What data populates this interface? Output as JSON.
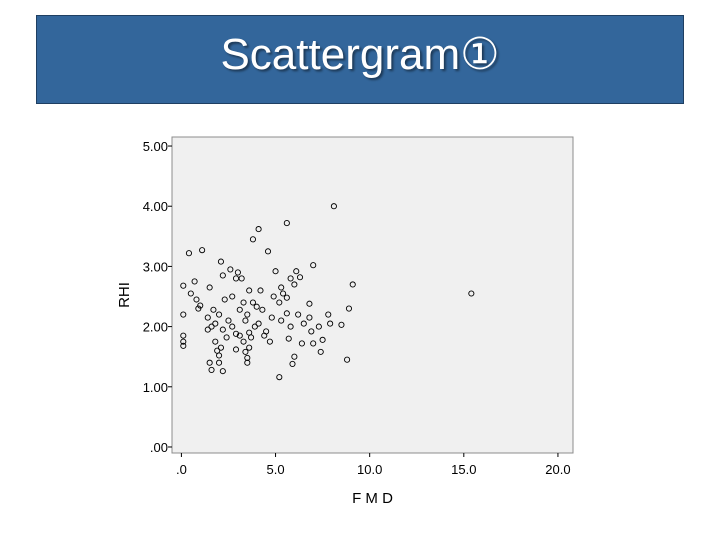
{
  "header": {
    "title": "Scattergram①"
  },
  "chart_data": {
    "type": "scatter",
    "xlabel": "F M D",
    "ylabel": "RHI",
    "xlim": [
      -0.5,
      20.8
    ],
    "ylim": [
      -0.1,
      5.15
    ],
    "xticks": [
      0,
      5,
      10,
      15,
      20
    ],
    "xtick_labels": [
      ".0",
      "5.0",
      "10.0",
      "15.0",
      "20.0"
    ],
    "yticks": [
      0,
      1,
      2,
      3,
      4,
      5
    ],
    "ytick_labels": [
      ".00",
      "1.00",
      "2.00",
      "3.00",
      "4.00",
      "5.00"
    ],
    "grid": false,
    "plot_background": "#f0f0f0",
    "marker_color": "#000000",
    "points": [
      [
        8.1,
        4.0
      ],
      [
        5.6,
        3.72
      ],
      [
        4.1,
        3.62
      ],
      [
        3.8,
        3.45
      ],
      [
        4.6,
        3.25
      ],
      [
        1.1,
        3.27
      ],
      [
        0.4,
        3.22
      ],
      [
        2.1,
        3.08
      ],
      [
        7.0,
        3.02
      ],
      [
        2.6,
        2.95
      ],
      [
        3.0,
        2.9
      ],
      [
        5.0,
        2.92
      ],
      [
        6.1,
        2.92
      ],
      [
        2.2,
        2.85
      ],
      [
        2.9,
        2.8
      ],
      [
        3.2,
        2.8
      ],
      [
        5.8,
        2.8
      ],
      [
        6.3,
        2.82
      ],
      [
        0.7,
        2.75
      ],
      [
        6.0,
        2.7
      ],
      [
        9.1,
        2.7
      ],
      [
        0.1,
        2.68
      ],
      [
        1.5,
        2.65
      ],
      [
        5.3,
        2.65
      ],
      [
        3.6,
        2.6
      ],
      [
        4.2,
        2.6
      ],
      [
        5.4,
        2.55
      ],
      [
        0.5,
        2.55
      ],
      [
        2.7,
        2.5
      ],
      [
        4.9,
        2.5
      ],
      [
        0.8,
        2.45
      ],
      [
        2.3,
        2.45
      ],
      [
        5.6,
        2.48
      ],
      [
        3.3,
        2.4
      ],
      [
        3.8,
        2.4
      ],
      [
        5.2,
        2.4
      ],
      [
        6.8,
        2.38
      ],
      [
        1.0,
        2.35
      ],
      [
        4.0,
        2.33
      ],
      [
        0.9,
        2.3
      ],
      [
        1.7,
        2.28
      ],
      [
        3.1,
        2.28
      ],
      [
        4.3,
        2.28
      ],
      [
        8.9,
        2.3
      ],
      [
        0.1,
        2.2
      ],
      [
        2.0,
        2.2
      ],
      [
        3.5,
        2.2
      ],
      [
        5.6,
        2.22
      ],
      [
        6.2,
        2.2
      ],
      [
        7.8,
        2.2
      ],
      [
        1.4,
        2.15
      ],
      [
        4.8,
        2.15
      ],
      [
        6.8,
        2.15
      ],
      [
        2.5,
        2.1
      ],
      [
        3.4,
        2.1
      ],
      [
        5.3,
        2.1
      ],
      [
        1.8,
        2.05
      ],
      [
        4.1,
        2.05
      ],
      [
        6.5,
        2.05
      ],
      [
        7.9,
        2.05
      ],
      [
        8.5,
        2.03
      ],
      [
        1.6,
        2.0
      ],
      [
        2.7,
        2.0
      ],
      [
        3.9,
        2.0
      ],
      [
        5.8,
        2.0
      ],
      [
        7.3,
        2.0
      ],
      [
        1.4,
        1.95
      ],
      [
        2.2,
        1.95
      ],
      [
        3.6,
        1.9
      ],
      [
        4.5,
        1.92
      ],
      [
        6.9,
        1.92
      ],
      [
        2.9,
        1.88
      ],
      [
        3.1,
        1.85
      ],
      [
        4.4,
        1.85
      ],
      [
        0.1,
        1.85
      ],
      [
        2.4,
        1.82
      ],
      [
        3.7,
        1.82
      ],
      [
        5.7,
        1.8
      ],
      [
        7.5,
        1.78
      ],
      [
        0.1,
        1.75
      ],
      [
        1.8,
        1.75
      ],
      [
        3.3,
        1.75
      ],
      [
        4.7,
        1.75
      ],
      [
        6.4,
        1.72
      ],
      [
        7.0,
        1.72
      ],
      [
        0.1,
        1.68
      ],
      [
        2.1,
        1.65
      ],
      [
        3.6,
        1.65
      ],
      [
        2.9,
        1.62
      ],
      [
        1.9,
        1.6
      ],
      [
        3.4,
        1.58
      ],
      [
        7.4,
        1.58
      ],
      [
        2.0,
        1.52
      ],
      [
        3.5,
        1.48
      ],
      [
        6.0,
        1.5
      ],
      [
        8.8,
        1.45
      ],
      [
        1.5,
        1.4
      ],
      [
        2.0,
        1.4
      ],
      [
        3.5,
        1.4
      ],
      [
        5.9,
        1.38
      ],
      [
        1.6,
        1.28
      ],
      [
        2.2,
        1.26
      ],
      [
        5.2,
        1.16
      ],
      [
        15.4,
        2.55
      ]
    ]
  }
}
